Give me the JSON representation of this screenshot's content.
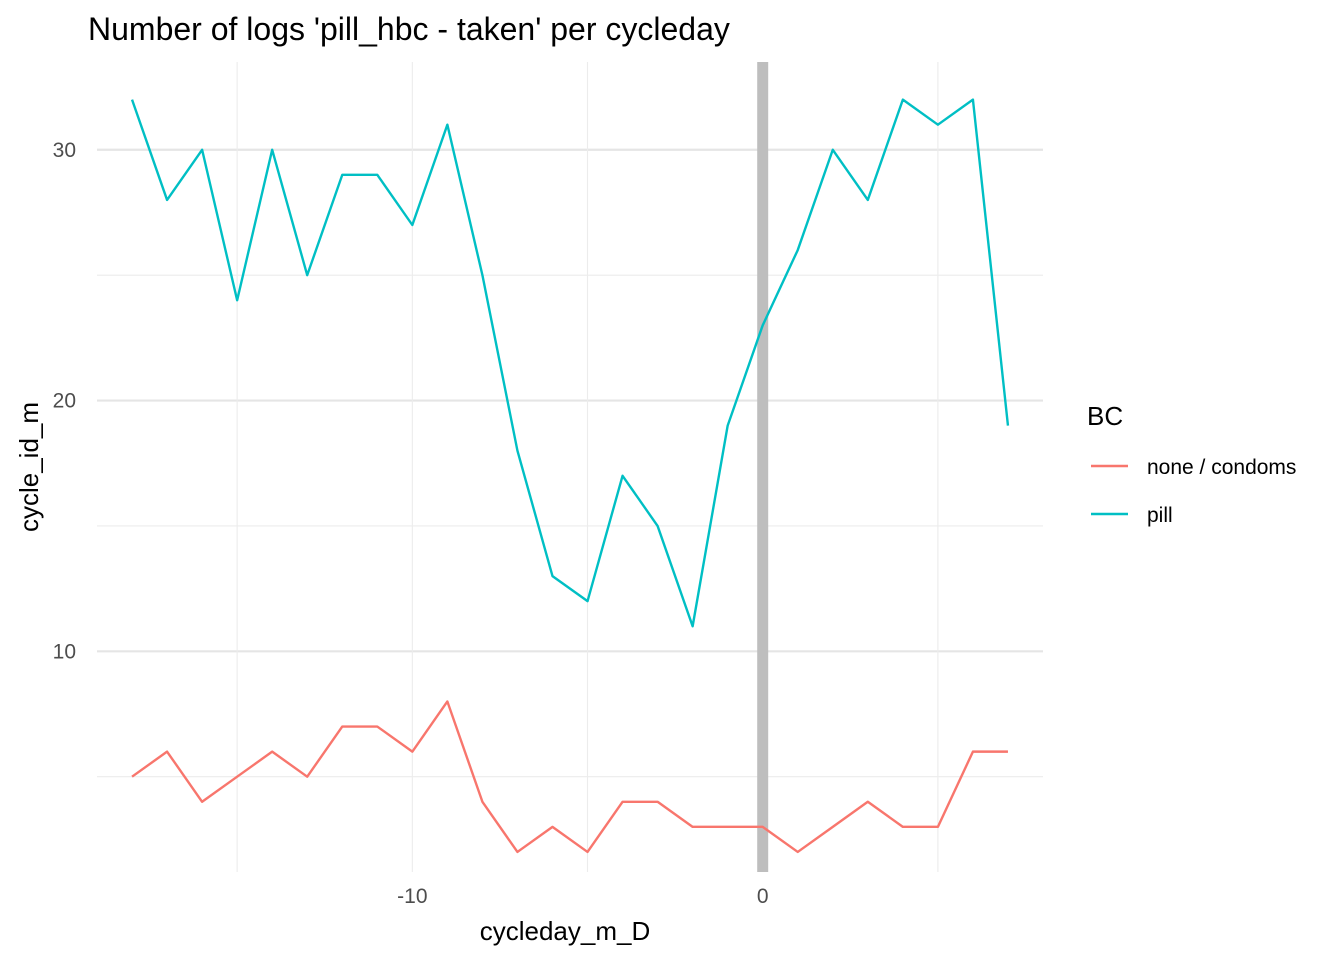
{
  "chart_data": {
    "type": "line",
    "title": "Number of logs 'pill_hbc - taken' per cycleday",
    "xlabel": "cycleday_m_D",
    "ylabel": "cycle_id_m",
    "xlim": [
      -19,
      8
    ],
    "ylim": [
      1.2,
      33.5
    ],
    "x_ticks": [
      -10,
      0
    ],
    "x_tick_labels": [
      "-10",
      "0"
    ],
    "y_ticks": [
      10,
      20,
      30
    ],
    "y_tick_labels": [
      "10",
      "20",
      "30"
    ],
    "grid": true,
    "reference_line": {
      "x": 0,
      "color": "#bebebe"
    },
    "legend": {
      "title": "BC",
      "position": "right"
    },
    "series": [
      {
        "name": "none / condoms",
        "color": "#F8766D",
        "x": [
          -18,
          -17,
          -16,
          -15,
          -14,
          -13,
          -12,
          -11,
          -10,
          -9,
          -8,
          -7,
          -6,
          -5,
          -4,
          -3,
          -2,
          -1,
          0,
          1,
          2,
          3,
          4,
          5,
          6,
          7
        ],
        "values": [
          5,
          6,
          4,
          5,
          6,
          5,
          7,
          7,
          6,
          8,
          4,
          2,
          3,
          2,
          4,
          4,
          3,
          3,
          3,
          2,
          3,
          4,
          3,
          3,
          6,
          6
        ]
      },
      {
        "name": "pill",
        "color": "#00BFC4",
        "x": [
          -18,
          -17,
          -16,
          -15,
          -14,
          -13,
          -12,
          -11,
          -10,
          -9,
          -8,
          -7,
          -6,
          -5,
          -4,
          -3,
          -2,
          -1,
          0,
          1,
          2,
          3,
          4,
          5,
          6,
          7
        ],
        "values": [
          32,
          28,
          30,
          24,
          30,
          25,
          29,
          29,
          27,
          31,
          25,
          18,
          13,
          12,
          17,
          15,
          11,
          19,
          23,
          26,
          30,
          28,
          32,
          31,
          32,
          19
        ]
      }
    ]
  }
}
